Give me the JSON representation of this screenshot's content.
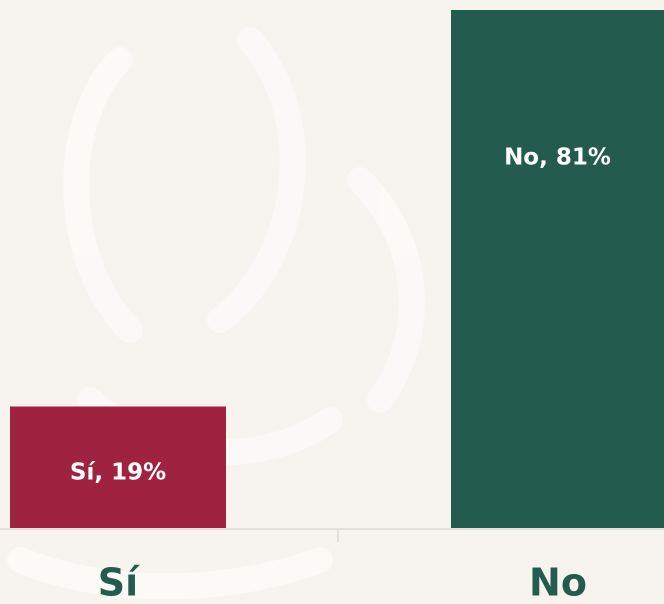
{
  "chart_data": {
    "type": "bar",
    "categories": [
      "Sí",
      "No"
    ],
    "values": [
      19,
      81
    ],
    "value_labels": [
      "Sí, 19%",
      "No, 81%"
    ],
    "colors": [
      "#9f2241",
      "#235b4e"
    ],
    "category_label_color": "#235b4e"
  }
}
